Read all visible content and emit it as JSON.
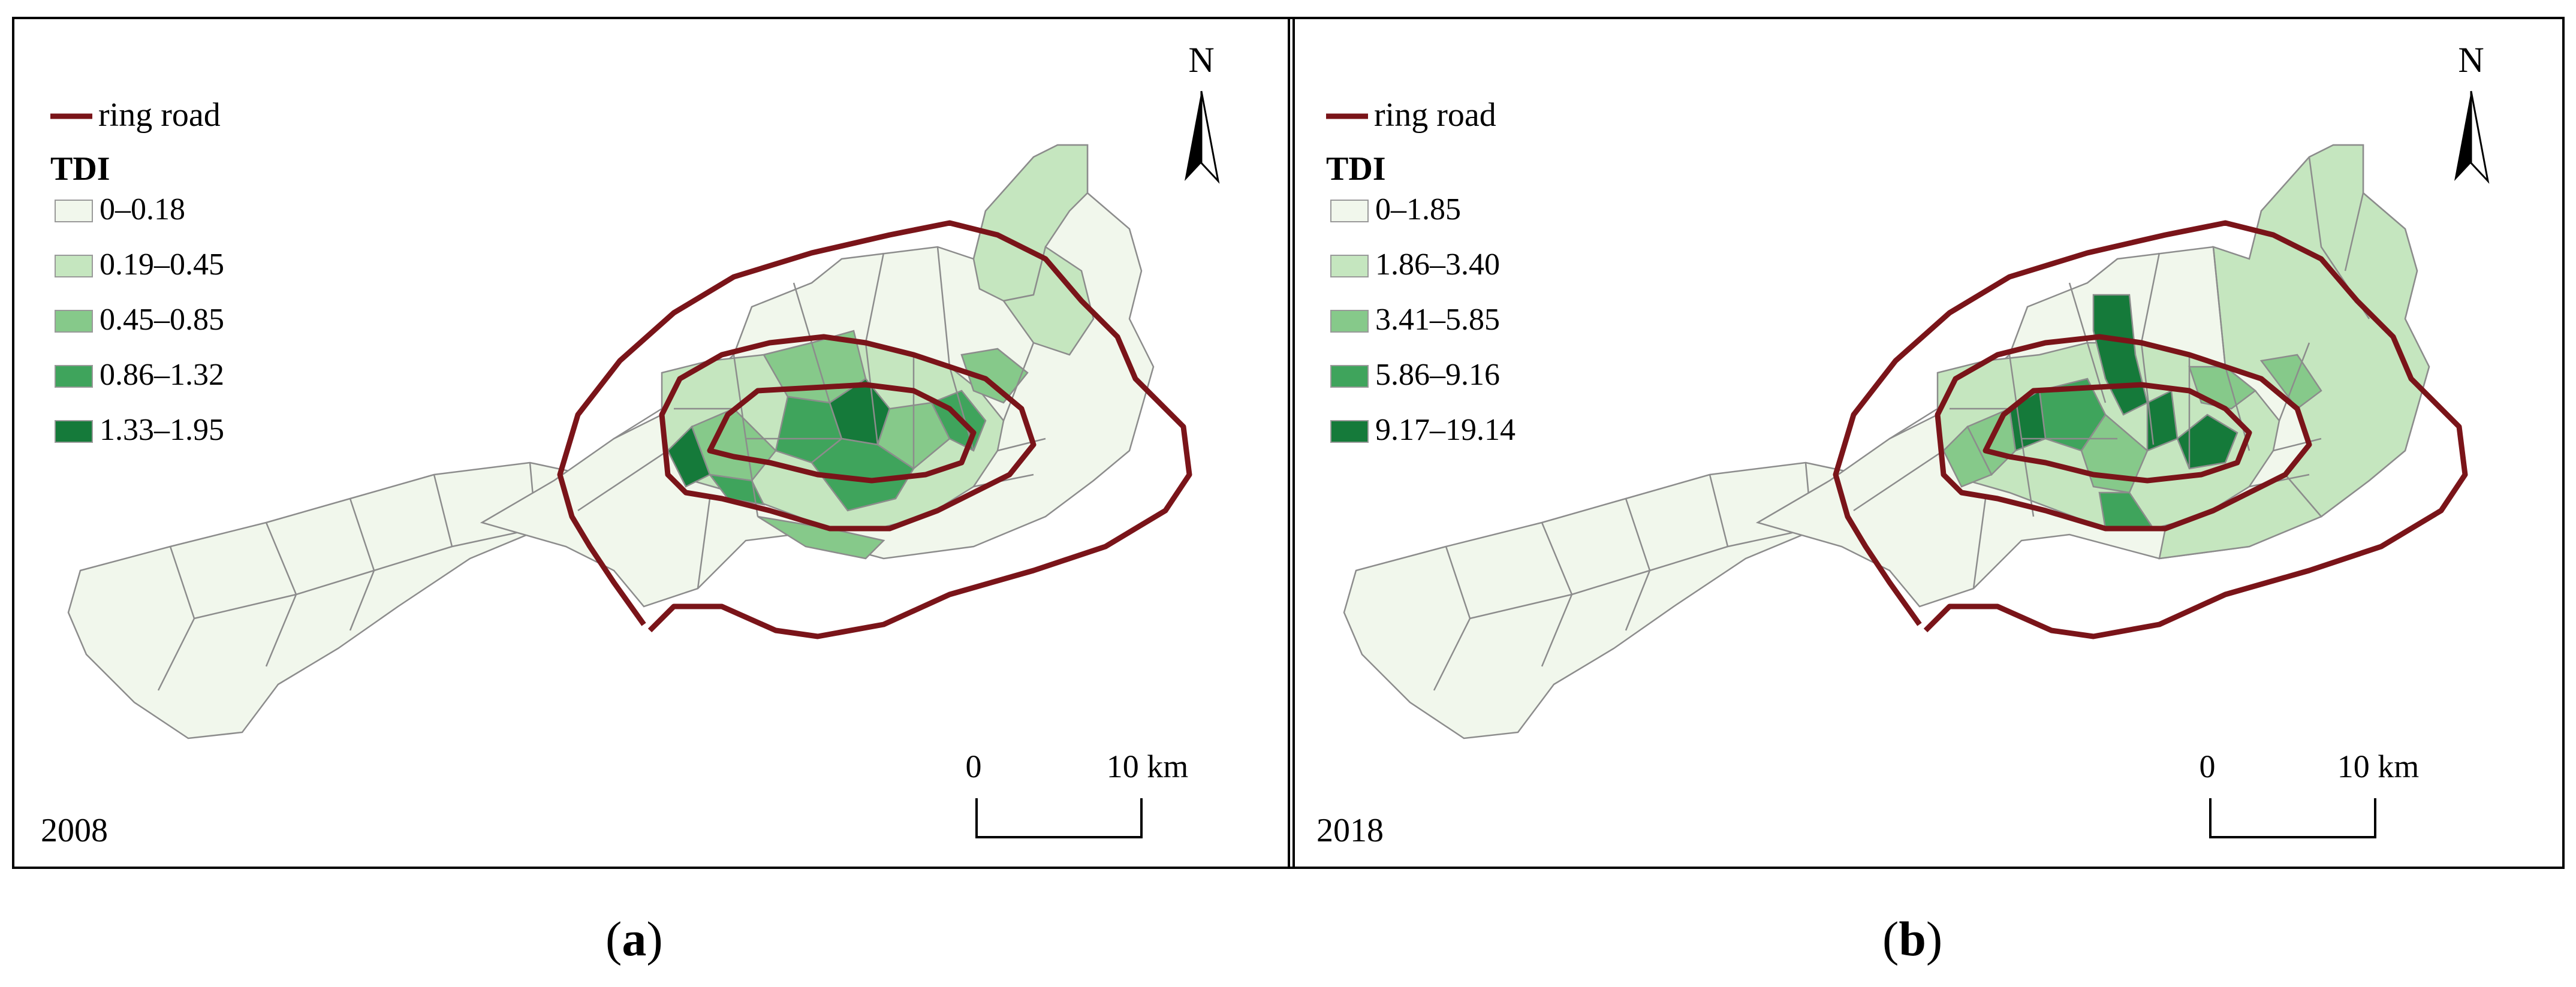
{
  "panels": [
    {
      "caption_open": "(",
      "caption_letter": "a",
      "caption_close": ")",
      "year": "2008",
      "legend": {
        "line_label": "ring road",
        "title": "TDI",
        "classes": [
          {
            "label": "0–0.18",
            "color": "#f1f7ec"
          },
          {
            "label": "0.19–0.45",
            "color": "#c5e6bf"
          },
          {
            "label": "0.45–0.85",
            "color": "#86c98a"
          },
          {
            "label": "0.86–1.32",
            "color": "#3fa45c"
          },
          {
            "label": "1.33–1.95",
            "color": "#157a3a"
          }
        ]
      },
      "north": "N",
      "scale": {
        "start": "0",
        "end": "10 km"
      }
    },
    {
      "caption_open": "(",
      "caption_letter": "b",
      "caption_close": ")",
      "year": "2018",
      "legend": {
        "line_label": "ring road",
        "title": "TDI",
        "classes": [
          {
            "label": "0–1.85",
            "color": "#f1f7ec"
          },
          {
            "label": "1.86–3.40",
            "color": "#c5e6bf"
          },
          {
            "label": "3.41–5.85",
            "color": "#86c98a"
          },
          {
            "label": "5.86–9.16",
            "color": "#3fa45c"
          },
          {
            "label": "9.17–19.14",
            "color": "#157a3a"
          }
        ]
      },
      "north": "N",
      "scale": {
        "start": "0",
        "end": "10 km"
      }
    }
  ],
  "colors": {
    "ring_road": "#7a1419",
    "boundary": "#8c8c8c",
    "frame": "#000000"
  }
}
